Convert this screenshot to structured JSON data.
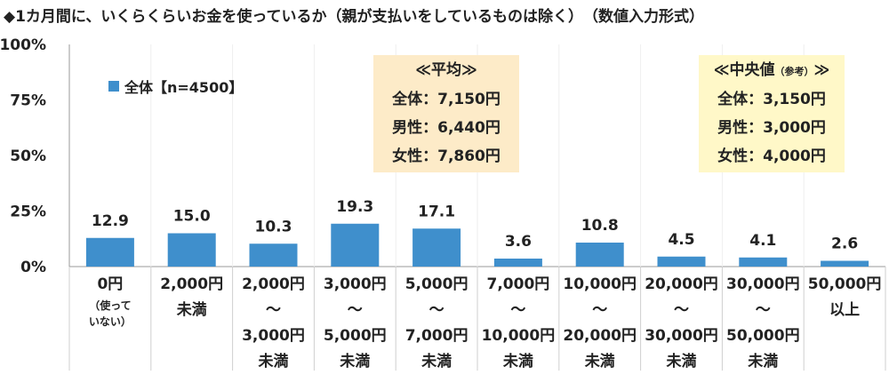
{
  "title": "◆1カ月間に、いくらくらいお金を使っているか（親が支払いをしているものは除く）　（数値入力形式）",
  "legend": {
    "label": "全体【n=4500】",
    "color": "#3f8fcc"
  },
  "average_box": {
    "heading": "≪平均≫",
    "lines": [
      "全体：7,150円",
      "男性：6,440円",
      "女性：7,860円"
    ],
    "bg": "#fdebc8"
  },
  "median_box": {
    "heading": "≪中央値",
    "heading_note": "（参考）",
    "heading_end": "≫",
    "lines": [
      "全体：3,150円",
      "男性：3,000円",
      "女性：4,000円"
    ],
    "bg": "#fff8c8"
  },
  "chart_data": {
    "type": "bar",
    "categories": [
      [
        "0円",
        "（使って",
        "いない）"
      ],
      [
        "2,000円",
        "未満"
      ],
      [
        "2,000円",
        "～",
        "3,000円",
        "未満"
      ],
      [
        "3,000円",
        "～",
        "5,000円",
        "未満"
      ],
      [
        "5,000円",
        "～",
        "7,000円",
        "未満"
      ],
      [
        "7,000円",
        "～",
        "10,000円",
        "未満"
      ],
      [
        "10,000円",
        "～",
        "20,000円",
        "未満"
      ],
      [
        "20,000円",
        "～",
        "30,000円",
        "未満"
      ],
      [
        "30,000円",
        "～",
        "50,000円",
        "未満"
      ],
      [
        "50,000円",
        "以上"
      ]
    ],
    "values": [
      12.9,
      15.0,
      10.3,
      19.3,
      17.1,
      3.6,
      10.8,
      4.5,
      4.1,
      2.6
    ],
    "value_labels": [
      "12.9",
      "15.0",
      "10.3",
      "19.3",
      "17.1",
      "3.6",
      "10.8",
      "4.5",
      "4.1",
      "2.6"
    ],
    "ylim": [
      0,
      100
    ],
    "yticks": [
      "0%",
      "25%",
      "50%",
      "75%",
      "100%"
    ],
    "ytick_values": [
      0,
      25,
      50,
      75,
      100
    ],
    "series_name": "全体【n=4500】",
    "bar_color": "#3f8fcc",
    "grid": false
  }
}
